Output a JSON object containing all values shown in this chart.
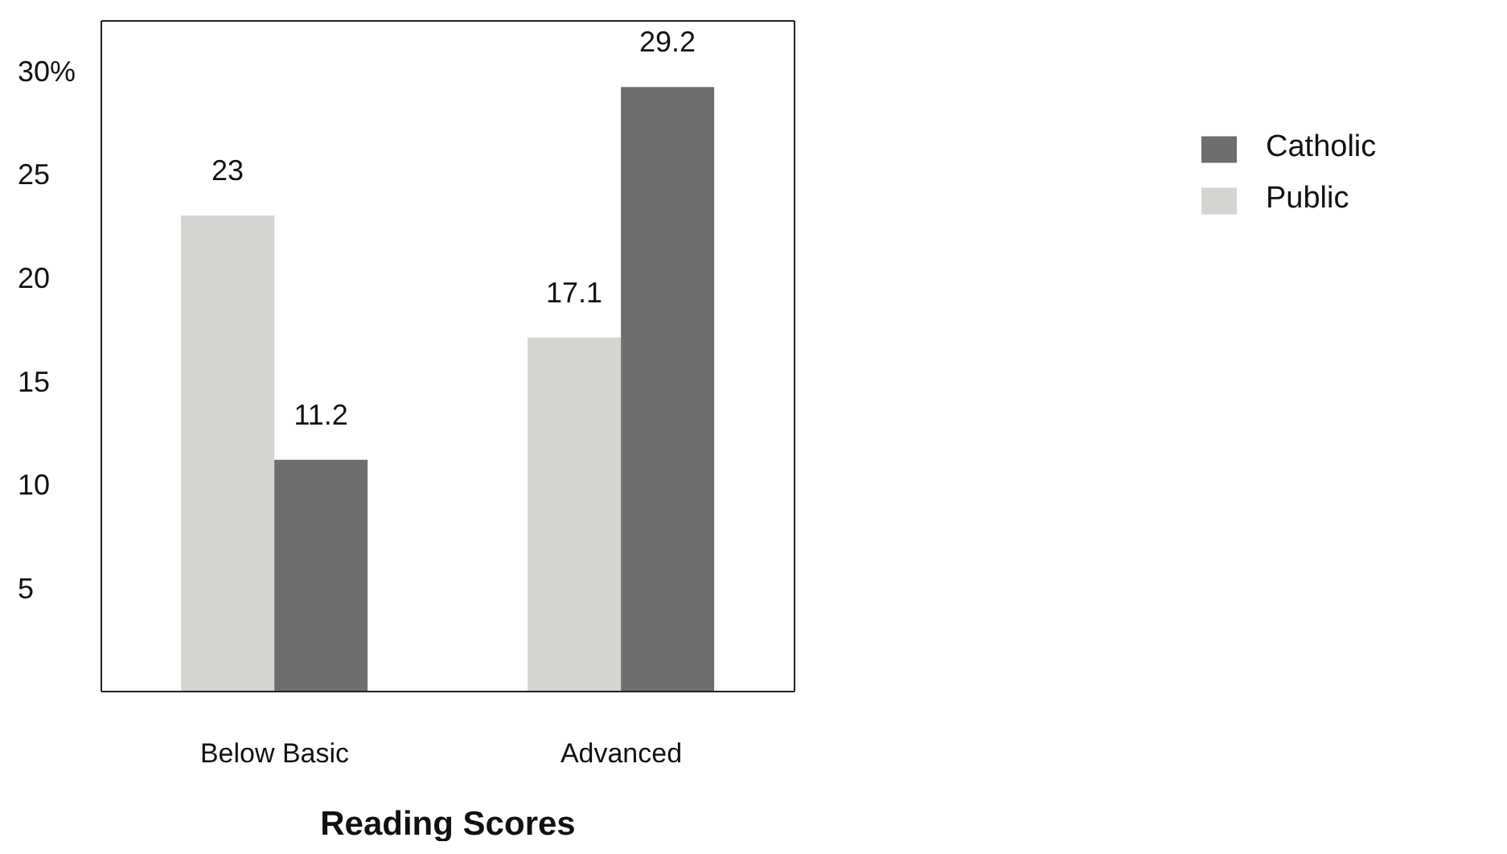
{
  "chart_data": {
    "type": "bar",
    "xlabel": "Reading Scores",
    "categories": [
      "Below Basic",
      "Advanced"
    ],
    "series": [
      {
        "name": "Public",
        "color": "#d4d4d0",
        "values": [
          23,
          17.1
        ]
      },
      {
        "name": "Catholic",
        "color": "#6e6e6e",
        "values": [
          11.2,
          29.2
        ]
      }
    ],
    "ylim": [
      0,
      32.4
    ],
    "yticks": [
      5,
      10,
      15,
      20,
      25,
      {
        "value": 30,
        "label": "30%"
      }
    ],
    "data_labels": true,
    "legend": "right",
    "grid": false
  }
}
